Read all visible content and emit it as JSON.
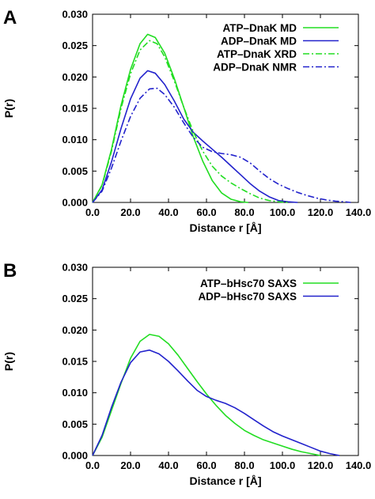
{
  "chart_data": [
    {
      "panel": "A",
      "type": "line",
      "xlabel": "Distance r [Å]",
      "ylabel": "P(r)",
      "xlim": [
        0,
        140
      ],
      "ylim": [
        0,
        0.03
      ],
      "xticks": [
        "0.0",
        "20.0",
        "40.0",
        "60.0",
        "80.0",
        "100.0",
        "120.0",
        "140.0"
      ],
      "yticks": [
        "0.000",
        "0.005",
        "0.010",
        "0.015",
        "0.020",
        "0.025",
        "0.030"
      ],
      "grid": false,
      "legend": "top-right",
      "series": [
        {
          "name": "ATP–DnaK MD",
          "color": "#22dd22",
          "dash": "solid",
          "points": [
            [
              0,
              0
            ],
            [
              5,
              0.0028
            ],
            [
              10,
              0.0085
            ],
            [
              15,
              0.0155
            ],
            [
              20,
              0.0212
            ],
            [
              25,
              0.0253
            ],
            [
              29,
              0.0268
            ],
            [
              33,
              0.0263
            ],
            [
              38,
              0.0238
            ],
            [
              43,
              0.0198
            ],
            [
              48,
              0.0152
            ],
            [
              53,
              0.0105
            ],
            [
              58,
              0.0066
            ],
            [
              63,
              0.0035
            ],
            [
              68,
              0.0015
            ],
            [
              73,
              0.0005
            ],
            [
              78,
              0.0001
            ],
            [
              82,
              0
            ]
          ]
        },
        {
          "name": "ADP–DnaK MD",
          "color": "#2222cc",
          "dash": "solid",
          "points": [
            [
              0,
              0
            ],
            [
              5,
              0.002
            ],
            [
              10,
              0.0065
            ],
            [
              15,
              0.0118
            ],
            [
              20,
              0.0165
            ],
            [
              25,
              0.0198
            ],
            [
              29,
              0.021
            ],
            [
              33,
              0.0206
            ],
            [
              38,
              0.0188
            ],
            [
              43,
              0.0162
            ],
            [
              48,
              0.0133
            ],
            [
              53,
              0.0112
            ],
            [
              58,
              0.0098
            ],
            [
              63,
              0.0085
            ],
            [
              68,
              0.0072
            ],
            [
              73,
              0.0058
            ],
            [
              78,
              0.0044
            ],
            [
              83,
              0.003
            ],
            [
              88,
              0.0018
            ],
            [
              93,
              0.0009
            ],
            [
              98,
              0.0003
            ],
            [
              103,
              0.0001
            ],
            [
              108,
              0
            ]
          ]
        },
        {
          "name": "ATP–DnaK XRD",
          "color": "#22dd22",
          "dash": "dashdot",
          "points": [
            [
              0,
              0
            ],
            [
              5,
              0.0027
            ],
            [
              10,
              0.0082
            ],
            [
              15,
              0.015
            ],
            [
              20,
              0.0205
            ],
            [
              25,
              0.0243
            ],
            [
              30,
              0.0258
            ],
            [
              34,
              0.0253
            ],
            [
              38,
              0.0232
            ],
            [
              43,
              0.0194
            ],
            [
              48,
              0.0152
            ],
            [
              53,
              0.0113
            ],
            [
              58,
              0.0082
            ],
            [
              63,
              0.0058
            ],
            [
              68,
              0.0042
            ],
            [
              73,
              0.0031
            ],
            [
              78,
              0.0022
            ],
            [
              83,
              0.0014
            ],
            [
              88,
              0.0007
            ],
            [
              93,
              0.0003
            ],
            [
              98,
              0.0001
            ],
            [
              103,
              0
            ]
          ]
        },
        {
          "name": "ADP–DnaK NMR",
          "color": "#2222cc",
          "dash": "dashdot",
          "points": [
            [
              0,
              0
            ],
            [
              5,
              0.0018
            ],
            [
              10,
              0.0055
            ],
            [
              15,
              0.0098
            ],
            [
              20,
              0.0137
            ],
            [
              25,
              0.0166
            ],
            [
              30,
              0.0181
            ],
            [
              34,
              0.0182
            ],
            [
              38,
              0.0172
            ],
            [
              43,
              0.0152
            ],
            [
              48,
              0.0127
            ],
            [
              53,
              0.0104
            ],
            [
              58,
              0.0088
            ],
            [
              63,
              0.0081
            ],
            [
              68,
              0.0078
            ],
            [
              73,
              0.0076
            ],
            [
              78,
              0.0072
            ],
            [
              83,
              0.0063
            ],
            [
              88,
              0.005
            ],
            [
              93,
              0.0038
            ],
            [
              98,
              0.0029
            ],
            [
              103,
              0.0022
            ],
            [
              108,
              0.0016
            ],
            [
              113,
              0.0011
            ],
            [
              118,
              0.0007
            ],
            [
              123,
              0.0004
            ],
            [
              128,
              0.0002
            ],
            [
              133,
              0.0001
            ],
            [
              136,
              0
            ]
          ]
        }
      ]
    },
    {
      "panel": "B",
      "type": "line",
      "xlabel": "Distance r [Å]",
      "ylabel": "P(r)",
      "xlim": [
        0,
        140
      ],
      "ylim": [
        0,
        0.03
      ],
      "xticks": [
        "0.0",
        "20.0",
        "40.0",
        "60.0",
        "80.0",
        "100.0",
        "120.0",
        "140.0"
      ],
      "yticks": [
        "0.000",
        "0.005",
        "0.010",
        "0.015",
        "0.020",
        "0.025",
        "0.030"
      ],
      "grid": false,
      "legend": "top-right",
      "series": [
        {
          "name": "ATP–bHsc70 SAXS",
          "color": "#22dd22",
          "dash": "solid",
          "points": [
            [
              0,
              0
            ],
            [
              5,
              0.0029
            ],
            [
              10,
              0.0072
            ],
            [
              15,
              0.0115
            ],
            [
              20,
              0.0155
            ],
            [
              25,
              0.0182
            ],
            [
              30,
              0.0193
            ],
            [
              35,
              0.019
            ],
            [
              40,
              0.0178
            ],
            [
              45,
              0.016
            ],
            [
              50,
              0.0139
            ],
            [
              55,
              0.0118
            ],
            [
              60,
              0.0098
            ],
            [
              65,
              0.008
            ],
            [
              70,
              0.0064
            ],
            [
              75,
              0.0051
            ],
            [
              80,
              0.004
            ],
            [
              85,
              0.0032
            ],
            [
              90,
              0.0025
            ],
            [
              95,
              0.002
            ],
            [
              100,
              0.0015
            ],
            [
              105,
              0.001
            ],
            [
              110,
              0.0006
            ],
            [
              115,
              0.0003
            ],
            [
              120,
              0
            ]
          ]
        },
        {
          "name": "ADP–bHsc70 SAXS",
          "color": "#2222cc",
          "dash": "solid",
          "points": [
            [
              0,
              0
            ],
            [
              5,
              0.0032
            ],
            [
              10,
              0.0077
            ],
            [
              15,
              0.0117
            ],
            [
              20,
              0.0148
            ],
            [
              25,
              0.0165
            ],
            [
              30,
              0.0168
            ],
            [
              35,
              0.0162
            ],
            [
              40,
              0.015
            ],
            [
              45,
              0.0135
            ],
            [
              50,
              0.0119
            ],
            [
              55,
              0.0104
            ],
            [
              60,
              0.0094
            ],
            [
              65,
              0.0088
            ],
            [
              70,
              0.0083
            ],
            [
              75,
              0.0076
            ],
            [
              80,
              0.0067
            ],
            [
              85,
              0.0057
            ],
            [
              90,
              0.0047
            ],
            [
              95,
              0.0038
            ],
            [
              100,
              0.0031
            ],
            [
              105,
              0.0025
            ],
            [
              110,
              0.0019
            ],
            [
              115,
              0.0013
            ],
            [
              120,
              0.0007
            ],
            [
              125,
              0.0003
            ],
            [
              130,
              0
            ]
          ]
        }
      ]
    }
  ]
}
